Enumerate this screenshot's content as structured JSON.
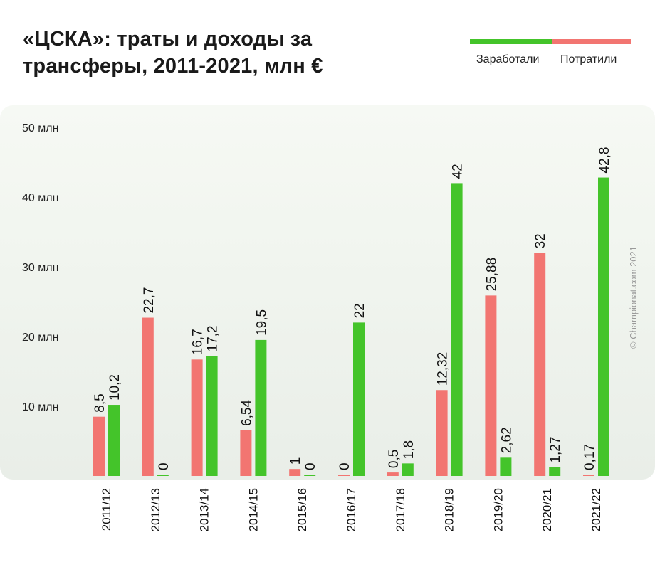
{
  "title": "«ЦСКА»: траты и доходы за трансферы, 2011-2021, млн €",
  "legend": {
    "earned_label": "Заработали",
    "spent_label": "Потратили"
  },
  "colors": {
    "earned": "#44c42a",
    "spent": "#f27571"
  },
  "copyright": "© Championat.com 2021",
  "chart_data": {
    "type": "bar",
    "title": "«ЦСКА»: траты и доходы за трансферы, 2011-2021, млн €",
    "categories": [
      "2011/12",
      "2012/13",
      "2013/14",
      "2014/15",
      "2015/16",
      "2016/17",
      "2017/18",
      "2018/19",
      "2019/20",
      "2020/21",
      "2021/22"
    ],
    "series": [
      {
        "name": "Потратили",
        "values": [
          8.5,
          22.7,
          16.7,
          6.54,
          1,
          0,
          0.5,
          12.32,
          25.88,
          32,
          0.17
        ],
        "labels": [
          "8,5",
          "22,7",
          "16,7",
          "6,54",
          "1",
          "0",
          "0,5",
          "12,32",
          "25,88",
          "32",
          "0,17"
        ]
      },
      {
        "name": "Заработали",
        "values": [
          10.2,
          0,
          17.2,
          19.5,
          0,
          22,
          1.8,
          42,
          2.62,
          1.27,
          42.8
        ],
        "labels": [
          "10,2",
          "0",
          "17,2",
          "19,5",
          "0",
          "22",
          "1,8",
          "42",
          "2,62",
          "1,27",
          "42,8"
        ]
      }
    ],
    "y_ticks": [
      {
        "value": 10,
        "label": "10 млн"
      },
      {
        "value": 20,
        "label": "20 млн"
      },
      {
        "value": 30,
        "label": "30 млн"
      },
      {
        "value": 40,
        "label": "40 млн"
      },
      {
        "value": 50,
        "label": "50 млн"
      }
    ],
    "ylim": [
      0,
      50
    ],
    "grid": false,
    "legend_position": "top-right"
  }
}
